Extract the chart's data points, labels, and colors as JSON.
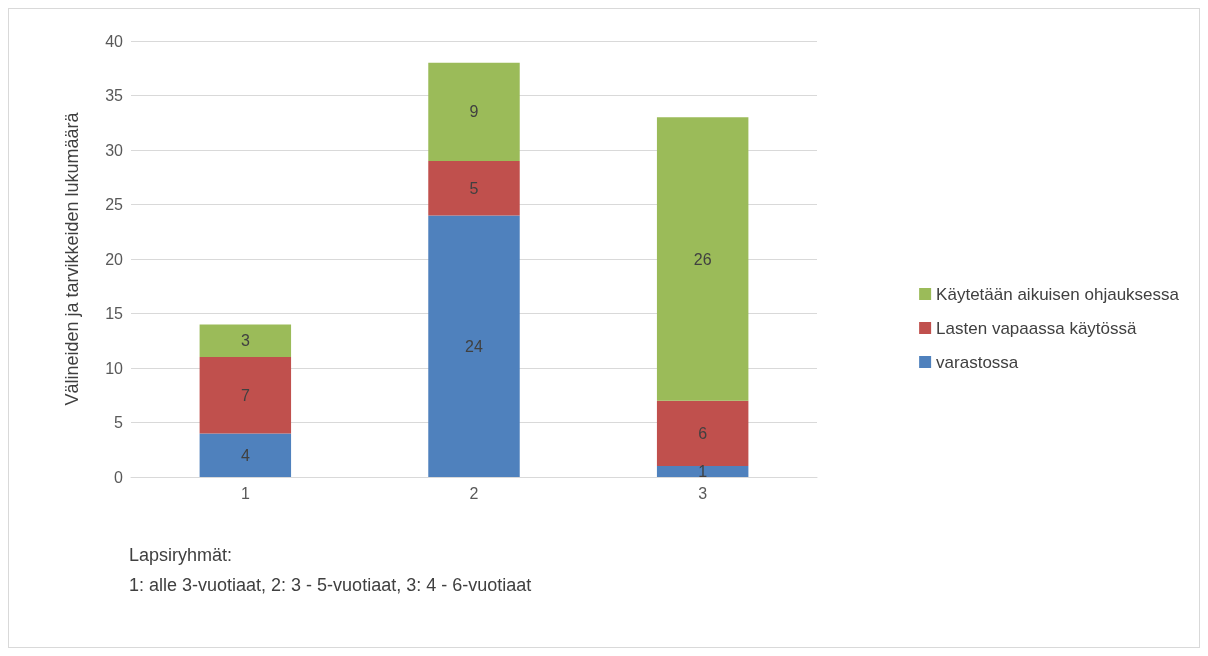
{
  "chart_data": {
    "type": "bar",
    "stacked": true,
    "ylabel": "Välineiden ja tarvikkeiden lukumäärä",
    "categories": [
      "1",
      "2",
      "3"
    ],
    "series": [
      {
        "name": "varastossa",
        "color": "#4f81bd",
        "values": [
          4,
          24,
          1
        ]
      },
      {
        "name": "Lasten vapaassa käytössä",
        "color": "#c0504d",
        "values": [
          7,
          5,
          6
        ]
      },
      {
        "name": "Käytetään aikuisen ohjauksessa",
        "color": "#9bbb59",
        "values": [
          3,
          9,
          26
        ]
      }
    ],
    "ylim": [
      0,
      40
    ],
    "yticks": [
      0,
      5,
      10,
      15,
      20,
      25,
      30,
      35,
      40
    ],
    "grid": "y",
    "legend": "right",
    "data_labels": true,
    "annotations": [
      "Lapsiryhmät:",
      "1: alle 3-vuotiaat, 2: 3 - 5-vuotiaat, 3: 4 - 6-vuotiaat"
    ]
  }
}
